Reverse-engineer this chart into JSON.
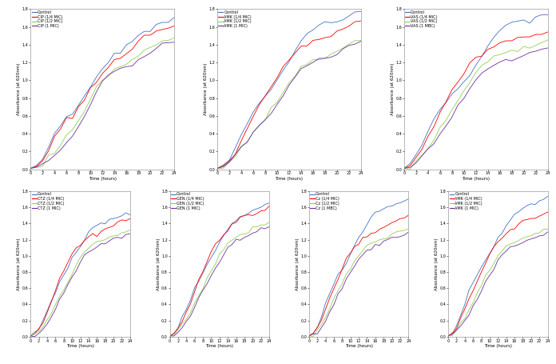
{
  "subplots": [
    {
      "legend_labels": [
        "Control",
        "CIP (1/4 MIC)",
        "CIP (1/2 MIC)",
        "CIP (1 MIC)"
      ],
      "colors": [
        "#4472c4",
        "#ff0000",
        "#92d050",
        "#7030a0"
      ],
      "time": [
        0,
        1,
        2,
        3,
        4,
        5,
        6,
        7,
        8,
        9,
        10,
        11,
        12,
        13,
        14,
        15,
        16,
        17,
        18,
        19,
        20,
        21,
        22,
        23,
        24
      ],
      "series": [
        [
          0.01,
          0.04,
          0.1,
          0.22,
          0.38,
          0.5,
          0.58,
          0.62,
          0.72,
          0.82,
          0.92,
          1.02,
          1.12,
          1.2,
          1.3,
          1.3,
          1.38,
          1.44,
          1.5,
          1.56,
          1.58,
          1.62,
          1.64,
          1.66,
          1.68
        ],
        [
          0.01,
          0.04,
          0.1,
          0.22,
          0.36,
          0.48,
          0.56,
          0.58,
          0.7,
          0.78,
          0.9,
          1.0,
          1.08,
          1.15,
          1.22,
          1.26,
          1.3,
          1.36,
          1.44,
          1.5,
          1.52,
          1.54,
          1.56,
          1.58,
          1.6
        ],
        [
          0.01,
          0.02,
          0.06,
          0.14,
          0.2,
          0.28,
          0.38,
          0.46,
          0.56,
          0.66,
          0.78,
          0.9,
          1.0,
          1.06,
          1.12,
          1.16,
          1.18,
          1.22,
          1.28,
          1.34,
          1.38,
          1.4,
          1.44,
          1.46,
          1.48
        ],
        [
          0.01,
          0.02,
          0.06,
          0.12,
          0.16,
          0.22,
          0.3,
          0.38,
          0.48,
          0.6,
          0.74,
          0.86,
          0.98,
          1.04,
          1.1,
          1.14,
          1.16,
          1.18,
          1.22,
          1.28,
          1.32,
          1.36,
          1.4,
          1.42,
          1.44
        ]
      ]
    },
    {
      "legend_labels": [
        "Control",
        "AMK (1/4 MIC)",
        "AMK (1/2 MIC)",
        "AMK (1 MIC)"
      ],
      "colors": [
        "#4472c4",
        "#ff0000",
        "#92d050",
        "#7030a0"
      ],
      "time": [
        0,
        1,
        2,
        3,
        4,
        5,
        6,
        7,
        8,
        9,
        10,
        11,
        12,
        13,
        14,
        15,
        16,
        17,
        18,
        19,
        20,
        21,
        22,
        23,
        24
      ],
      "series": [
        [
          0.01,
          0.04,
          0.12,
          0.24,
          0.38,
          0.52,
          0.64,
          0.74,
          0.82,
          0.9,
          1.0,
          1.1,
          1.22,
          1.32,
          1.44,
          1.52,
          1.58,
          1.62,
          1.64,
          1.66,
          1.68,
          1.7,
          1.72,
          1.74,
          1.76
        ],
        [
          0.01,
          0.04,
          0.1,
          0.2,
          0.32,
          0.46,
          0.6,
          0.72,
          0.82,
          0.94,
          1.04,
          1.16,
          1.22,
          1.3,
          1.4,
          1.4,
          1.44,
          1.44,
          1.48,
          1.5,
          1.54,
          1.58,
          1.6,
          1.64,
          1.66
        ],
        [
          0.01,
          0.02,
          0.08,
          0.16,
          0.24,
          0.32,
          0.42,
          0.5,
          0.56,
          0.66,
          0.76,
          0.86,
          0.96,
          1.06,
          1.14,
          1.18,
          1.22,
          1.24,
          1.26,
          1.28,
          1.32,
          1.36,
          1.4,
          1.44,
          1.46
        ],
        [
          0.01,
          0.02,
          0.08,
          0.16,
          0.24,
          0.3,
          0.4,
          0.48,
          0.54,
          0.64,
          0.74,
          0.84,
          0.94,
          1.04,
          1.12,
          1.16,
          1.2,
          1.22,
          1.24,
          1.26,
          1.3,
          1.34,
          1.38,
          1.42,
          1.44
        ]
      ]
    },
    {
      "legend_labels": [
        "Control",
        "VAS (1/4 MIC)",
        "VAS (1/2 MIC)",
        "VAS (1 MBC)"
      ],
      "colors": [
        "#4472c4",
        "#ff0000",
        "#92d050",
        "#7030a0"
      ],
      "time": [
        0,
        1,
        2,
        3,
        4,
        5,
        6,
        7,
        8,
        9,
        10,
        11,
        12,
        13,
        14,
        15,
        16,
        17,
        18,
        19,
        20,
        21,
        22,
        23,
        24
      ],
      "series": [
        [
          0.01,
          0.06,
          0.16,
          0.3,
          0.44,
          0.56,
          0.66,
          0.76,
          0.84,
          0.9,
          0.98,
          1.06,
          1.18,
          1.28,
          1.4,
          1.48,
          1.56,
          1.6,
          1.64,
          1.66,
          1.68,
          1.68,
          1.7,
          1.72,
          1.74
        ],
        [
          0.01,
          0.04,
          0.12,
          0.24,
          0.36,
          0.5,
          0.64,
          0.76,
          0.88,
          0.98,
          1.08,
          1.18,
          1.24,
          1.28,
          1.34,
          1.38,
          1.42,
          1.44,
          1.46,
          1.48,
          1.5,
          1.5,
          1.52,
          1.54,
          1.56
        ],
        [
          0.01,
          0.02,
          0.08,
          0.16,
          0.24,
          0.34,
          0.46,
          0.56,
          0.66,
          0.78,
          0.88,
          0.98,
          1.08,
          1.16,
          1.22,
          1.26,
          1.28,
          1.3,
          1.32,
          1.34,
          1.36,
          1.38,
          1.4,
          1.42,
          1.44
        ],
        [
          0.01,
          0.02,
          0.08,
          0.14,
          0.22,
          0.3,
          0.4,
          0.5,
          0.6,
          0.7,
          0.8,
          0.9,
          1.0,
          1.08,
          1.14,
          1.18,
          1.2,
          1.22,
          1.24,
          1.26,
          1.28,
          1.3,
          1.32,
          1.34,
          1.36
        ]
      ]
    },
    {
      "legend_labels": [
        "Control",
        "CTZ (1/4 MIC)",
        "CTZ (1/2 MIC)",
        "CTZ (1 MIC)"
      ],
      "colors": [
        "#4472c4",
        "#ff0000",
        "#92d050",
        "#7030a0"
      ],
      "time": [
        0,
        1,
        2,
        3,
        4,
        5,
        6,
        7,
        8,
        9,
        10,
        11,
        12,
        13,
        14,
        15,
        16,
        17,
        18,
        19,
        20,
        21,
        22,
        23,
        24
      ],
      "series": [
        [
          0.01,
          0.04,
          0.1,
          0.2,
          0.32,
          0.44,
          0.56,
          0.66,
          0.76,
          0.86,
          0.96,
          1.04,
          1.12,
          1.2,
          1.28,
          1.34,
          1.38,
          1.4,
          1.42,
          1.44,
          1.46,
          1.48,
          1.5,
          1.52,
          1.54
        ],
        [
          0.01,
          0.04,
          0.1,
          0.18,
          0.3,
          0.44,
          0.58,
          0.7,
          0.82,
          0.92,
          1.02,
          1.1,
          1.14,
          1.2,
          1.22,
          1.28,
          1.26,
          1.3,
          1.34,
          1.36,
          1.38,
          1.4,
          1.42,
          1.44,
          1.46
        ],
        [
          0.01,
          0.02,
          0.06,
          0.12,
          0.2,
          0.28,
          0.38,
          0.48,
          0.58,
          0.68,
          0.78,
          0.86,
          0.96,
          1.04,
          1.1,
          1.14,
          1.16,
          1.18,
          1.2,
          1.22,
          1.24,
          1.26,
          1.28,
          1.3,
          1.32
        ],
        [
          0.01,
          0.02,
          0.06,
          0.1,
          0.16,
          0.24,
          0.34,
          0.44,
          0.54,
          0.64,
          0.74,
          0.82,
          0.92,
          1.0,
          1.06,
          1.1,
          1.12,
          1.14,
          1.16,
          1.18,
          1.2,
          1.22,
          1.24,
          1.26,
          1.28
        ]
      ]
    },
    {
      "legend_labels": [
        "Control",
        "GEN (1/4 MIC)",
        "GEN (1/2 MIC)",
        "GEN (1 MIC)"
      ],
      "colors": [
        "#4472c4",
        "#ff0000",
        "#92d050",
        "#7030a0"
      ],
      "time": [
        0,
        1,
        2,
        3,
        4,
        5,
        6,
        7,
        8,
        9,
        10,
        11,
        12,
        13,
        14,
        15,
        16,
        17,
        18,
        19,
        20,
        21,
        22,
        23,
        24
      ],
      "series": [
        [
          0.01,
          0.04,
          0.12,
          0.24,
          0.36,
          0.46,
          0.58,
          0.68,
          0.78,
          0.88,
          0.98,
          1.06,
          1.16,
          1.24,
          1.34,
          1.4,
          1.44,
          1.48,
          1.5,
          1.54,
          1.56,
          1.58,
          1.6,
          1.62,
          1.64
        ],
        [
          0.01,
          0.04,
          0.1,
          0.2,
          0.3,
          0.42,
          0.56,
          0.7,
          0.82,
          0.94,
          1.06,
          1.16,
          1.2,
          1.26,
          1.32,
          1.38,
          1.42,
          1.46,
          1.48,
          1.5,
          1.52,
          1.54,
          1.56,
          1.58,
          1.6
        ],
        [
          0.01,
          0.02,
          0.08,
          0.14,
          0.22,
          0.3,
          0.4,
          0.5,
          0.6,
          0.72,
          0.82,
          0.9,
          1.02,
          1.1,
          1.18,
          1.2,
          1.24,
          1.26,
          1.28,
          1.3,
          1.34,
          1.36,
          1.38,
          1.4,
          1.42
        ],
        [
          0.01,
          0.02,
          0.06,
          0.12,
          0.18,
          0.26,
          0.36,
          0.46,
          0.56,
          0.66,
          0.76,
          0.84,
          0.94,
          1.02,
          1.1,
          1.14,
          1.18,
          1.2,
          1.24,
          1.26,
          1.28,
          1.3,
          1.32,
          1.34,
          1.36
        ]
      ]
    },
    {
      "legend_labels": [
        "Control",
        "Cz (1/4 MIC)",
        "Cz (1/2 MIC)",
        "Cz (1 MBC)"
      ],
      "colors": [
        "#4472c4",
        "#ff0000",
        "#92d050",
        "#7030a0"
      ],
      "time": [
        0,
        1,
        2,
        3,
        4,
        5,
        6,
        7,
        8,
        9,
        10,
        11,
        12,
        13,
        14,
        15,
        16,
        17,
        18,
        19,
        20,
        21,
        22,
        23,
        24
      ],
      "series": [
        [
          0.01,
          0.04,
          0.12,
          0.26,
          0.4,
          0.54,
          0.66,
          0.76,
          0.84,
          0.92,
          1.02,
          1.12,
          1.22,
          1.3,
          1.4,
          1.46,
          1.5,
          1.54,
          1.58,
          1.6,
          1.62,
          1.64,
          1.66,
          1.68,
          1.7
        ],
        [
          0.01,
          0.04,
          0.1,
          0.22,
          0.34,
          0.48,
          0.6,
          0.72,
          0.84,
          0.94,
          1.04,
          1.12,
          1.16,
          1.22,
          1.24,
          1.28,
          1.3,
          1.34,
          1.36,
          1.38,
          1.4,
          1.42,
          1.44,
          1.46,
          1.48
        ],
        [
          0.01,
          0.02,
          0.08,
          0.16,
          0.24,
          0.34,
          0.46,
          0.56,
          0.66,
          0.76,
          0.84,
          0.92,
          1.0,
          1.06,
          1.12,
          1.16,
          1.18,
          1.2,
          1.22,
          1.24,
          1.26,
          1.28,
          1.3,
          1.32,
          1.34
        ],
        [
          0.01,
          0.02,
          0.06,
          0.12,
          0.18,
          0.28,
          0.4,
          0.52,
          0.62,
          0.72,
          0.8,
          0.88,
          0.96,
          1.02,
          1.06,
          1.1,
          1.12,
          1.14,
          1.16,
          1.18,
          1.2,
          1.22,
          1.24,
          1.26,
          1.28
        ]
      ]
    },
    {
      "legend_labels": [
        "Control",
        "AMK (1/4 MIC)",
        "AMK (1/2 MIC)",
        "AMK (1 MIC)"
      ],
      "colors": [
        "#4472c4",
        "#ff0000",
        "#92d050",
        "#7030a0"
      ],
      "time": [
        0,
        1,
        2,
        3,
        4,
        5,
        6,
        7,
        8,
        9,
        10,
        11,
        12,
        13,
        14,
        15,
        16,
        17,
        18,
        19,
        20,
        21,
        22,
        23,
        24
      ],
      "series": [
        [
          0.01,
          0.04,
          0.12,
          0.28,
          0.42,
          0.56,
          0.66,
          0.76,
          0.86,
          0.96,
          1.04,
          1.12,
          1.2,
          1.28,
          1.38,
          1.44,
          1.5,
          1.54,
          1.58,
          1.62,
          1.64,
          1.66,
          1.68,
          1.7,
          1.72
        ],
        [
          0.01,
          0.04,
          0.1,
          0.22,
          0.34,
          0.46,
          0.58,
          0.7,
          0.8,
          0.92,
          1.02,
          1.1,
          1.16,
          1.22,
          1.28,
          1.32,
          1.36,
          1.4,
          1.42,
          1.44,
          1.46,
          1.48,
          1.5,
          1.52,
          1.54
        ],
        [
          0.01,
          0.02,
          0.08,
          0.16,
          0.24,
          0.32,
          0.44,
          0.54,
          0.64,
          0.74,
          0.82,
          0.9,
          1.0,
          1.06,
          1.12,
          1.16,
          1.18,
          1.2,
          1.22,
          1.24,
          1.26,
          1.28,
          1.3,
          1.32,
          1.34
        ],
        [
          0.01,
          0.02,
          0.08,
          0.14,
          0.2,
          0.28,
          0.38,
          0.48,
          0.58,
          0.68,
          0.76,
          0.84,
          0.94,
          1.0,
          1.06,
          1.1,
          1.12,
          1.14,
          1.16,
          1.18,
          1.2,
          1.22,
          1.24,
          1.26,
          1.28
        ]
      ]
    }
  ],
  "ylabel": "Absorbance (at 620nm)",
  "xlabel": "Time (hours)",
  "ylim": [
    0,
    1.8
  ],
  "xlim": [
    0,
    24
  ],
  "xticks": [
    0,
    2,
    4,
    6,
    8,
    10,
    12,
    14,
    16,
    18,
    20,
    22,
    24
  ],
  "yticks": [
    0,
    0.2,
    0.4,
    0.6,
    0.8,
    1.0,
    1.2,
    1.4,
    1.6,
    1.8
  ],
  "linewidth": 0.6,
  "fontsize_legend": 3.5,
  "fontsize_axis_label": 4.0,
  "fontsize_tick": 3.5,
  "background_color": "#ffffff"
}
